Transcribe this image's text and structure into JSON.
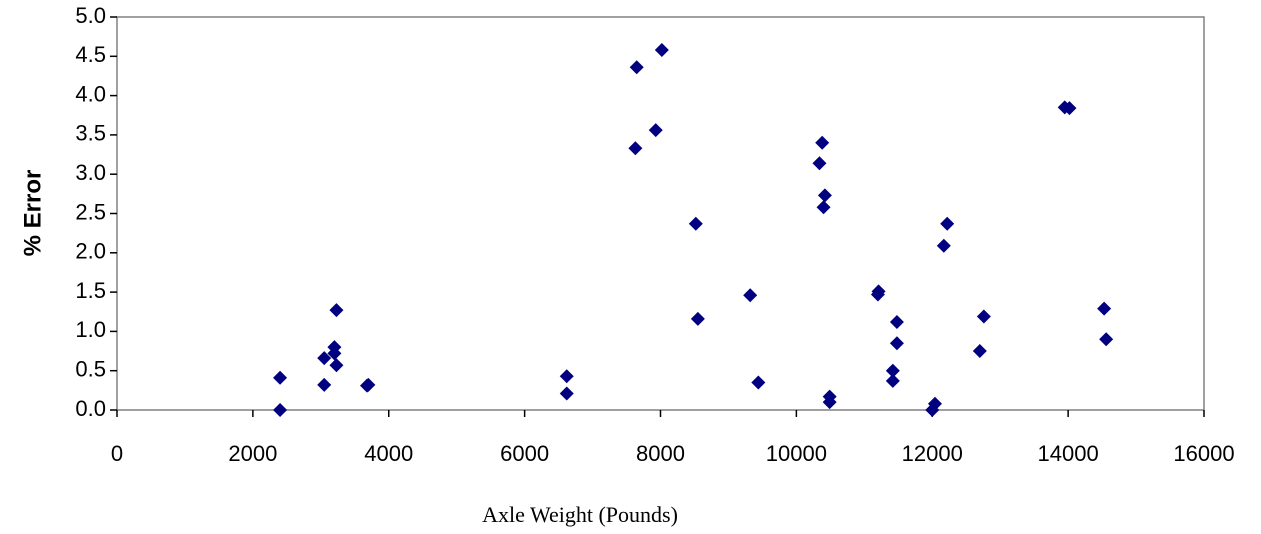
{
  "chart_data": {
    "type": "scatter",
    "title": "",
    "xlabel": "Axle Weight (Pounds)",
    "ylabel": "% Error",
    "xlim": [
      0,
      16000
    ],
    "ylim": [
      0,
      5.0
    ],
    "x_ticks": [
      "0",
      "2000",
      "4000",
      "6000",
      "8000",
      "10000",
      "12000",
      "14000",
      "16000"
    ],
    "y_ticks": [
      "0.0",
      "0.5",
      "1.0",
      "1.5",
      "2.0",
      "2.5",
      "3.0",
      "3.5",
      "4.0",
      "4.5",
      "5.0"
    ],
    "grid": false,
    "marker_color": "#000080",
    "series": [
      {
        "points": [
          [
            2400,
            0.41
          ],
          [
            2400,
            0.0
          ],
          [
            3050,
            0.66
          ],
          [
            3050,
            0.32
          ],
          [
            3200,
            0.72
          ],
          [
            3200,
            0.8
          ],
          [
            3230,
            0.57
          ],
          [
            3230,
            1.27
          ],
          [
            3680,
            0.31
          ],
          [
            3700,
            0.32
          ],
          [
            6620,
            0.43
          ],
          [
            6620,
            0.21
          ],
          [
            7630,
            3.33
          ],
          [
            7650,
            4.36
          ],
          [
            7930,
            3.56
          ],
          [
            8020,
            4.58
          ],
          [
            8520,
            2.37
          ],
          [
            8550,
            1.16
          ],
          [
            9320,
            1.46
          ],
          [
            9440,
            0.35
          ],
          [
            10340,
            3.14
          ],
          [
            10380,
            3.4
          ],
          [
            10400,
            2.58
          ],
          [
            10420,
            2.73
          ],
          [
            10490,
            0.17
          ],
          [
            10490,
            0.1
          ],
          [
            11200,
            1.47
          ],
          [
            11210,
            1.51
          ],
          [
            11420,
            0.5
          ],
          [
            11420,
            0.37
          ],
          [
            11480,
            1.12
          ],
          [
            11480,
            0.85
          ],
          [
            12000,
            0.0
          ],
          [
            12040,
            0.08
          ],
          [
            12170,
            2.09
          ],
          [
            12220,
            2.37
          ],
          [
            12700,
            0.75
          ],
          [
            12760,
            1.19
          ],
          [
            13950,
            3.85
          ],
          [
            14020,
            3.84
          ],
          [
            14530,
            1.29
          ],
          [
            14560,
            0.9
          ]
        ]
      }
    ]
  }
}
